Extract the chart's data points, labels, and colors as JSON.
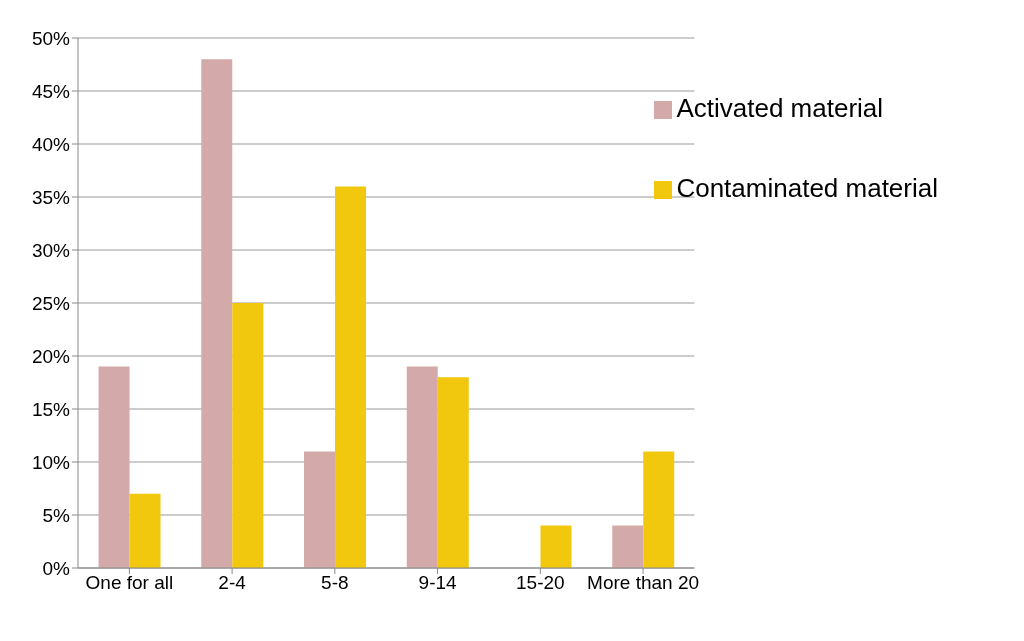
{
  "chart_data": {
    "type": "bar",
    "categories": [
      "One for all",
      "2-4",
      "5-8",
      "9-14",
      "15-20",
      "More than 20"
    ],
    "series": [
      {
        "name": "Activated material",
        "color": "#d4a9a9",
        "values": [
          19,
          48,
          11,
          19,
          0,
          4
        ]
      },
      {
        "name": "Contaminated material",
        "color": "#f2c80f",
        "values": [
          7,
          25,
          36,
          18,
          4,
          11
        ]
      }
    ],
    "ylim": [
      0,
      50
    ],
    "yticks": [
      {
        "value": 0,
        "label": "0%"
      },
      {
        "value": 5,
        "label": "5%"
      },
      {
        "value": 10,
        "label": "10%"
      },
      {
        "value": 15,
        "label": "15%"
      },
      {
        "value": 20,
        "label": "20%"
      },
      {
        "value": 25,
        "label": "25%"
      },
      {
        "value": 30,
        "label": "30%"
      },
      {
        "value": 35,
        "label": "35%"
      },
      {
        "value": 40,
        "label": "40%"
      },
      {
        "value": 45,
        "label": "45%"
      },
      {
        "value": 50,
        "label": "50%"
      }
    ],
    "grid": "y",
    "legend": "top right"
  }
}
